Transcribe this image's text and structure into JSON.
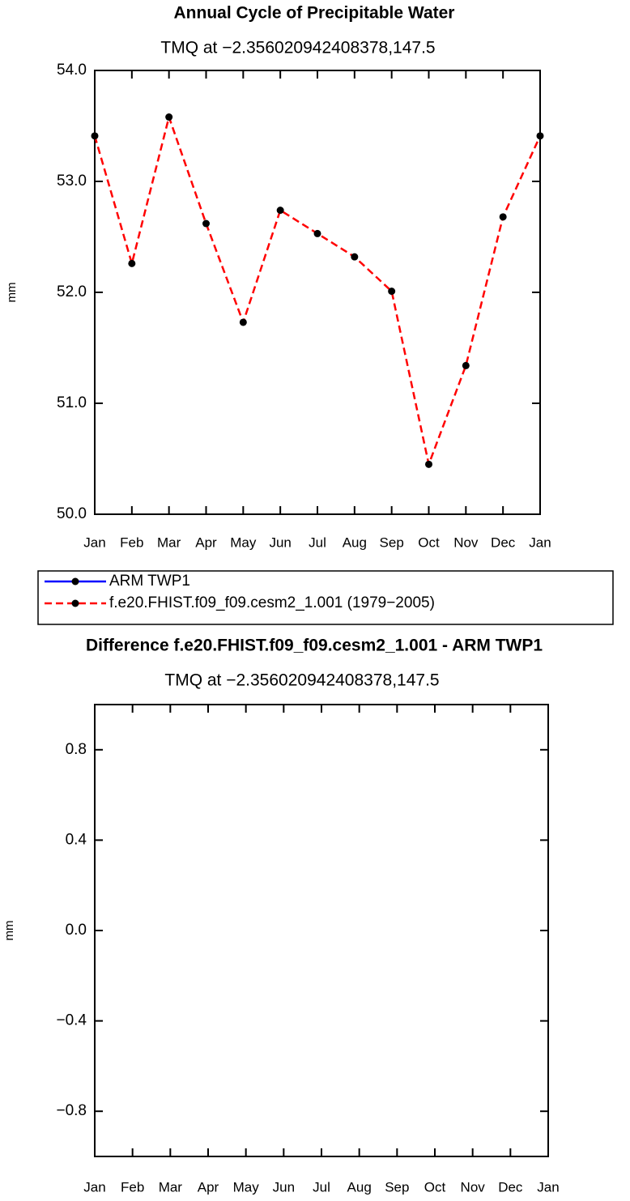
{
  "chart_data": [
    {
      "type": "line",
      "title": "Annual Cycle of Precipitable Water",
      "subtitle": "TMQ  at −2.356020942408378,147.5",
      "y_label": "mm",
      "categories": [
        "Jan",
        "Feb",
        "Mar",
        "Apr",
        "May",
        "Jun",
        "Jul",
        "Aug",
        "Sep",
        "Oct",
        "Nov",
        "Dec",
        "Jan"
      ],
      "ylim": [
        50,
        54
      ],
      "yticks": [
        {
          "value": 50,
          "label": "50.0"
        },
        {
          "value": 51,
          "label": "51.0"
        },
        {
          "value": 52,
          "label": "52.0"
        },
        {
          "value": 53,
          "label": "53.0"
        },
        {
          "value": 54,
          "label": "54.0"
        }
      ],
      "markers": true,
      "series": [
        {
          "name": "ARM  TWP1",
          "color": "#0000ff",
          "dash": false,
          "values": [
            null,
            null,
            null,
            null,
            null,
            null,
            null,
            null,
            null,
            null,
            null,
            null,
            null
          ]
        },
        {
          "name": "f.e20.FHIST.f09_f09.cesm2_1.001  (1979−2005)",
          "color": "#ff0000",
          "dash": true,
          "values": [
            53.41,
            52.26,
            53.58,
            52.62,
            51.73,
            52.74,
            52.53,
            52.32,
            52.01,
            50.45,
            51.34,
            52.68,
            53.41
          ]
        }
      ]
    },
    {
      "type": "line",
      "title": "Difference f.e20.FHIST.f09_f09.cesm2_1.001 - ARM TWP1",
      "subtitle": "TMQ  at −2.356020942408378,147.5",
      "y_label": "mm",
      "categories": [
        "Jan",
        "Feb",
        "Mar",
        "Apr",
        "May",
        "Jun",
        "Jul",
        "Aug",
        "Sep",
        "Oct",
        "Nov",
        "Dec",
        "Jan"
      ],
      "ylim": [
        -1,
        1
      ],
      "yticks": [
        {
          "value": -0.8,
          "label": "−0.8"
        },
        {
          "value": -0.4,
          "label": "−0.4"
        },
        {
          "value": 0,
          "label": "0.0"
        },
        0.4,
        0.8
      ],
      "markers": true,
      "series": []
    }
  ]
}
